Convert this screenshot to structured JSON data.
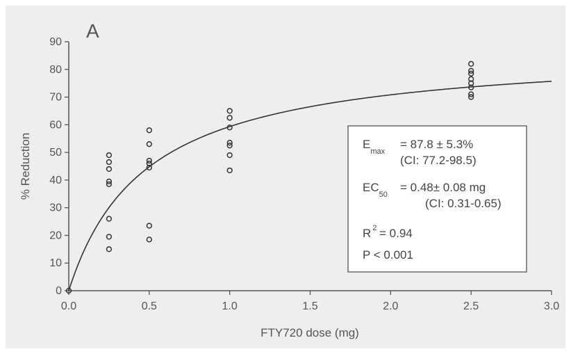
{
  "chart_data": {
    "type": "scatter",
    "panel_label": "A",
    "xlabel": "FTY720 dose (mg)",
    "ylabel": "% Reduction",
    "xlim": [
      0.0,
      3.0
    ],
    "ylim": [
      0,
      90
    ],
    "x_ticks": [
      "0.0",
      "0.5",
      "1.0",
      "1.5",
      "2.0",
      "2.5",
      "3.0"
    ],
    "y_ticks": [
      "0",
      "10",
      "20",
      "30",
      "40",
      "50",
      "60",
      "70",
      "80",
      "90"
    ],
    "grid": false,
    "points": [
      {
        "x": 0.0,
        "y": 0
      },
      {
        "x": 0.25,
        "y": 49
      },
      {
        "x": 0.25,
        "y": 46.5
      },
      {
        "x": 0.25,
        "y": 44
      },
      {
        "x": 0.25,
        "y": 39.5
      },
      {
        "x": 0.25,
        "y": 38.5
      },
      {
        "x": 0.25,
        "y": 26
      },
      {
        "x": 0.25,
        "y": 19.5
      },
      {
        "x": 0.25,
        "y": 15
      },
      {
        "x": 0.5,
        "y": 58
      },
      {
        "x": 0.5,
        "y": 53
      },
      {
        "x": 0.5,
        "y": 47
      },
      {
        "x": 0.5,
        "y": 46
      },
      {
        "x": 0.5,
        "y": 44.5
      },
      {
        "x": 0.5,
        "y": 23.5
      },
      {
        "x": 0.5,
        "y": 18.5
      },
      {
        "x": 1.0,
        "y": 65
      },
      {
        "x": 1.0,
        "y": 62.5
      },
      {
        "x": 1.0,
        "y": 59
      },
      {
        "x": 1.0,
        "y": 53.5
      },
      {
        "x": 1.0,
        "y": 52.5
      },
      {
        "x": 1.0,
        "y": 49
      },
      {
        "x": 1.0,
        "y": 43.5
      },
      {
        "x": 2.5,
        "y": 82
      },
      {
        "x": 2.5,
        "y": 79.5
      },
      {
        "x": 2.5,
        "y": 78.5
      },
      {
        "x": 2.5,
        "y": 76.5
      },
      {
        "x": 2.5,
        "y": 75
      },
      {
        "x": 2.5,
        "y": 73.5
      },
      {
        "x": 2.5,
        "y": 71
      },
      {
        "x": 2.5,
        "y": 70
      }
    ],
    "fit": {
      "model": "Emax",
      "emax": 87.8,
      "ec50": 0.48
    },
    "stats": {
      "emax_symbol": "E",
      "emax_sub": "max",
      "emax_value": "= 87.8 ± 5.3%",
      "emax_ci": "(CI: 77.2-98.5)",
      "ec50_symbol": "EC",
      "ec50_sub": "50",
      "ec50_value": "= 0.48± 0.08 mg",
      "ec50_ci": "(CI: 0.31-0.65)",
      "r2_symbol": "R",
      "r2_sup": "2",
      "r2_value": "= 0.94",
      "p_value": "P < 0.001"
    },
    "colors": {
      "background": "#eeeeee",
      "ink": "#555555",
      "curve": "#333333"
    }
  }
}
